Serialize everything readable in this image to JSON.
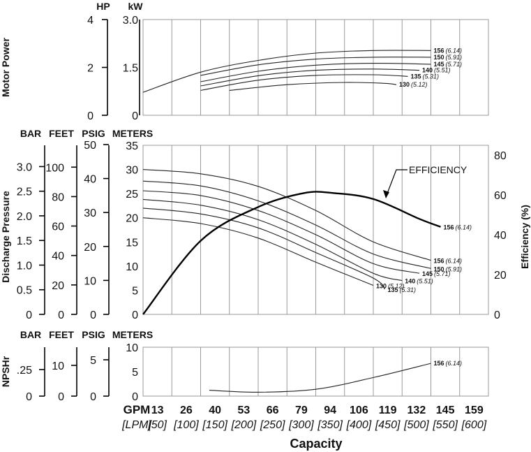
{
  "chart_data": {
    "type": "line",
    "capacity": {
      "title": "Capacity",
      "gpm_label": "GPM",
      "lpm_label": "[LPM]",
      "gpm_ticks": [
        "13",
        "26",
        "40",
        "53",
        "66",
        "79",
        "94",
        "106",
        "119",
        "132",
        "145",
        "159"
      ],
      "lpm_ticks": [
        "[50]",
        "[100]",
        "[150]",
        "[200]",
        "[250]",
        "[300]",
        "[350]",
        "[400]",
        "[450]",
        "[500]",
        "[550]",
        "[600]"
      ],
      "xlim": [
        0,
        600
      ]
    },
    "power_panel": {
      "ylabel": "Motor Power",
      "hp_header": "HP",
      "kw_header": "kW",
      "hp_ticks": [
        "4",
        "2",
        "0"
      ],
      "kw_ticks": [
        "3.0",
        "1.5",
        "0"
      ],
      "ylim_kw": [
        0,
        3.0
      ],
      "series": [
        {
          "name": "156",
          "alt": "(6.14)",
          "x": [
            0,
            100,
            200,
            300,
            400,
            500
          ],
          "y": [
            0.72,
            1.35,
            1.72,
            1.95,
            2.03,
            2.03
          ]
        },
        {
          "name": "150",
          "alt": "(5.91)",
          "x": [
            100,
            200,
            300,
            400,
            500
          ],
          "y": [
            1.25,
            1.58,
            1.76,
            1.82,
            1.82
          ]
        },
        {
          "name": "145",
          "alt": "(5.71)",
          "x": [
            100,
            200,
            300,
            400,
            500
          ],
          "y": [
            1.05,
            1.38,
            1.57,
            1.63,
            1.6
          ]
        },
        {
          "name": "140",
          "alt": "(5.51)",
          "x": [
            100,
            200,
            300,
            400,
            480
          ],
          "y": [
            0.92,
            1.24,
            1.41,
            1.45,
            1.41
          ]
        },
        {
          "name": "135",
          "alt": "(5.31)",
          "x": [
            100,
            200,
            300,
            400,
            460
          ],
          "y": [
            0.78,
            1.1,
            1.25,
            1.27,
            1.22
          ]
        },
        {
          "name": "130",
          "alt": "(5.12)",
          "x": [
            150,
            250,
            350,
            420,
            440
          ],
          "y": [
            0.78,
            0.96,
            1.03,
            1.0,
            0.96
          ]
        }
      ]
    },
    "pressure_panel": {
      "ylabel": "Discharge Pressure",
      "ylabel_right": "Efficiency (%)",
      "headers": [
        "BAR",
        "FEET",
        "PSIG",
        "METERS"
      ],
      "bar_ticks": [
        "3.0",
        "2.5",
        "2.0",
        "1.5",
        "1.0",
        "0.5",
        "0"
      ],
      "feet_ticks": [
        "100",
        "80",
        "60",
        "40",
        "20",
        "0"
      ],
      "psig_ticks": [
        "50",
        "40",
        "30",
        "20",
        "10",
        "0"
      ],
      "meters_ticks": [
        "35",
        "30",
        "25",
        "20",
        "15",
        "10",
        "5",
        "0"
      ],
      "eff_ticks": [
        "80",
        "60",
        "40",
        "20",
        "0"
      ],
      "ylim_m": [
        0,
        35
      ],
      "ylim_eff": [
        0,
        85
      ],
      "efficiency_label": "EFFICIENCY",
      "efficiency": {
        "x": [
          0,
          100,
          200,
          280,
          330,
          400,
          480,
          517
        ],
        "y": [
          0,
          37,
          54,
          61,
          61,
          58,
          48,
          44
        ]
      },
      "series": [
        {
          "name": "156",
          "alt": "(6.14)",
          "x": [
            0,
            100,
            200,
            300,
            400,
            500
          ],
          "y": [
            30,
            29.1,
            26.5,
            21.5,
            15,
            11.2
          ]
        },
        {
          "name": "150",
          "alt": "(5.91)",
          "x": [
            0,
            100,
            200,
            300,
            400,
            500
          ],
          "y": [
            27.6,
            26.6,
            23.5,
            18.5,
            12.5,
            9.5
          ]
        },
        {
          "name": "145",
          "alt": "(5.71)",
          "x": [
            0,
            100,
            200,
            300,
            400,
            480
          ],
          "y": [
            25.6,
            24.6,
            21.5,
            16.5,
            10.5,
            8.5
          ]
        },
        {
          "name": "140",
          "alt": "(5.51)",
          "x": [
            0,
            100,
            200,
            300,
            400,
            450
          ],
          "y": [
            23.8,
            22.6,
            19.6,
            14.5,
            8.5,
            7
          ]
        },
        {
          "name": "135",
          "alt": "(5.31)",
          "x": [
            0,
            100,
            200,
            300,
            400,
            420
          ],
          "y": [
            22,
            20.8,
            17.9,
            12.8,
            7.5,
            5.2
          ]
        },
        {
          "name": "130",
          "alt": "(5.12)",
          "x": [
            0,
            100,
            200,
            300,
            400
          ],
          "y": [
            20,
            18.8,
            15.8,
            10.8,
            6
          ]
        }
      ]
    },
    "npshr_panel": {
      "ylabel": "NPSHr",
      "headers": [
        "BAR",
        "FEET",
        "PSIG",
        "METERS"
      ],
      "bar_ticks": [
        ".25",
        "0"
      ],
      "feet_ticks": [
        "10",
        "0"
      ],
      "psig_ticks": [
        "5",
        "0"
      ],
      "meters_ticks": [
        "10",
        "5",
        "0"
      ],
      "ylim_m": [
        0,
        10
      ],
      "series": [
        {
          "name": "156",
          "alt": "(6.14)",
          "x": [
            115,
            200,
            300,
            400,
            500
          ],
          "y": [
            1.2,
            0.8,
            1.4,
            3.8,
            6.7
          ]
        }
      ]
    }
  }
}
